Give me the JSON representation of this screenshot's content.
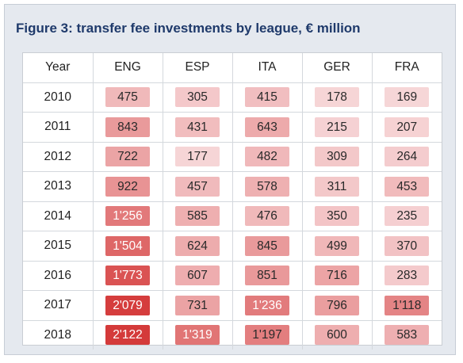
{
  "title": "Figure 3: transfer fee investments by league, € million",
  "chart_data": {
    "type": "table",
    "title": "Figure 3: transfer fee investments by league, € million",
    "columns": [
      "Year",
      "ENG",
      "ESP",
      "ITA",
      "GER",
      "FRA"
    ],
    "rows": [
      {
        "year": "2010",
        "values": [
          475,
          305,
          415,
          178,
          169
        ],
        "labels": [
          "475",
          "305",
          "415",
          "178",
          "169"
        ]
      },
      {
        "year": "2011",
        "values": [
          843,
          431,
          643,
          215,
          207
        ],
        "labels": [
          "843",
          "431",
          "643",
          "215",
          "207"
        ]
      },
      {
        "year": "2012",
        "values": [
          722,
          177,
          482,
          309,
          264
        ],
        "labels": [
          "722",
          "177",
          "482",
          "309",
          "264"
        ]
      },
      {
        "year": "2013",
        "values": [
          922,
          457,
          578,
          311,
          453
        ],
        "labels": [
          "922",
          "457",
          "578",
          "311",
          "453"
        ]
      },
      {
        "year": "2014",
        "values": [
          1256,
          585,
          476,
          350,
          235
        ],
        "labels": [
          "1'256",
          "585",
          "476",
          "350",
          "235"
        ]
      },
      {
        "year": "2015",
        "values": [
          1504,
          624,
          845,
          499,
          370
        ],
        "labels": [
          "1'504",
          "624",
          "845",
          "499",
          "370"
        ]
      },
      {
        "year": "2016",
        "values": [
          1773,
          607,
          851,
          716,
          283
        ],
        "labels": [
          "1'773",
          "607",
          "851",
          "716",
          "283"
        ]
      },
      {
        "year": "2017",
        "values": [
          2079,
          731,
          1236,
          796,
          1118
        ],
        "labels": [
          "2'079",
          "731",
          "1'236",
          "796",
          "1'118"
        ]
      },
      {
        "year": "2018",
        "values": [
          2122,
          1319,
          1197,
          600,
          583
        ],
        "labels": [
          "2'122",
          "1'319",
          "1'197",
          "600",
          "583"
        ]
      }
    ],
    "colors": {
      "low": "#fbeaec",
      "high": "#d43a3a",
      "title": "#1f3a6b"
    }
  }
}
